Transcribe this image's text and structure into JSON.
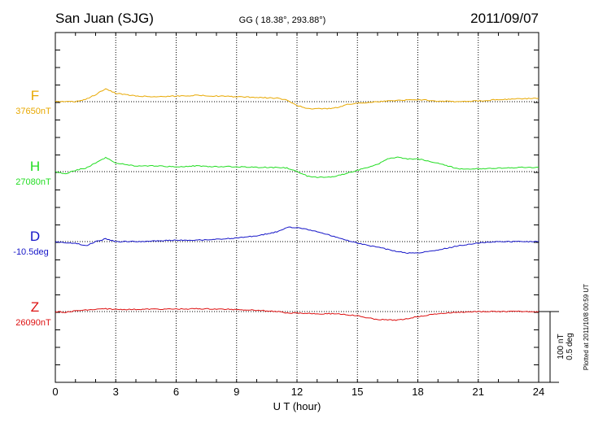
{
  "header": {
    "station": "San Juan (SJG)",
    "coords": "GG ( 18.38°, 293.88°)",
    "date": "2011/09/07"
  },
  "footer": {
    "plotted": "Plotted at 2011/10/8 00:59 UT"
  },
  "colors": {
    "F": "#e8a800",
    "H": "#22dd22",
    "D": "#1515c8",
    "Z": "#dd1111"
  },
  "chart_data": {
    "type": "line",
    "title": "San Juan (SJG)",
    "xlabel": "U T (hour)",
    "ylabel": "",
    "xlim": [
      0,
      24
    ],
    "x_ticks": [
      "0",
      "3",
      "6",
      "9",
      "12",
      "15",
      "18",
      "21",
      "24"
    ],
    "scale": {
      "line1": "100 nT",
      "line2": "0.5 deg"
    },
    "series": [
      {
        "key": "F",
        "name": "F",
        "baseline_label": "37650nT",
        "units": "nT",
        "x": [
          0,
          1,
          1.5,
          2,
          2.5,
          3,
          4,
          5,
          6,
          7,
          8,
          9,
          10,
          11,
          11.5,
          12,
          12.5,
          13,
          13.5,
          14,
          14.5,
          15,
          16,
          17,
          18,
          19,
          20,
          21,
          22,
          23,
          24
        ],
        "values": [
          0,
          0,
          3,
          10,
          18,
          12,
          8,
          7,
          8,
          9,
          8,
          7,
          6,
          5,
          2,
          -5,
          -10,
          -10,
          -10,
          -8,
          -4,
          -2,
          0,
          2,
          3,
          1,
          0,
          1,
          3,
          4,
          5
        ]
      },
      {
        "key": "H",
        "name": "H",
        "baseline_label": "27080nT",
        "units": "nT",
        "x": [
          0,
          0.5,
          1,
          1.5,
          2,
          2.5,
          3,
          4,
          5,
          6,
          7,
          8,
          9,
          10,
          11,
          11.5,
          12,
          12.5,
          13,
          13.5,
          14,
          15,
          16,
          16.5,
          17,
          17.5,
          18,
          18.5,
          19,
          19.5,
          20,
          21,
          22,
          23,
          24
        ],
        "values": [
          0,
          -3,
          2,
          5,
          12,
          20,
          12,
          8,
          8,
          7,
          8,
          7,
          7,
          6,
          6,
          5,
          0,
          -6,
          -8,
          -8,
          -6,
          2,
          10,
          18,
          20,
          18,
          18,
          15,
          12,
          8,
          4,
          4,
          5,
          6,
          6
        ]
      },
      {
        "key": "D",
        "name": "D",
        "baseline_label": "-10.5deg",
        "units": "deg",
        "x": [
          0,
          0.5,
          1,
          1.5,
          2,
          2.5,
          3,
          4,
          5,
          6,
          7,
          8,
          9,
          10,
          11,
          11.5,
          12,
          13,
          14,
          15,
          16,
          17,
          17.5,
          18,
          18.5,
          19,
          20,
          21,
          22,
          23,
          24
        ],
        "values": [
          0,
          -1,
          -1,
          -3,
          0,
          2,
          0,
          0,
          0.5,
          1,
          1,
          1.5,
          2.5,
          4,
          7,
          10,
          10,
          7,
          3,
          -1,
          -4,
          -7,
          -8,
          -8,
          -7,
          -6,
          -3,
          -1,
          0,
          0,
          0
        ]
      },
      {
        "key": "Z",
        "name": "Z",
        "baseline_label": "26090nT",
        "units": "nT",
        "x": [
          0,
          0.5,
          1,
          1.5,
          2,
          2.5,
          3,
          4,
          5,
          6,
          7,
          8,
          9,
          10,
          11,
          11.5,
          12,
          13,
          14,
          15,
          15.5,
          16,
          16.5,
          17,
          17.5,
          18,
          18.5,
          19,
          20,
          21,
          22,
          23,
          24
        ],
        "values": [
          0,
          -1,
          1,
          2,
          3,
          4,
          3,
          3,
          3.5,
          3.5,
          4,
          3.5,
          3,
          2,
          0,
          -2,
          -2,
          -3,
          -3,
          -6,
          -9,
          -11,
          -12,
          -12,
          -10,
          -7,
          -5,
          -3,
          -1,
          0,
          0,
          0,
          0
        ]
      }
    ]
  }
}
